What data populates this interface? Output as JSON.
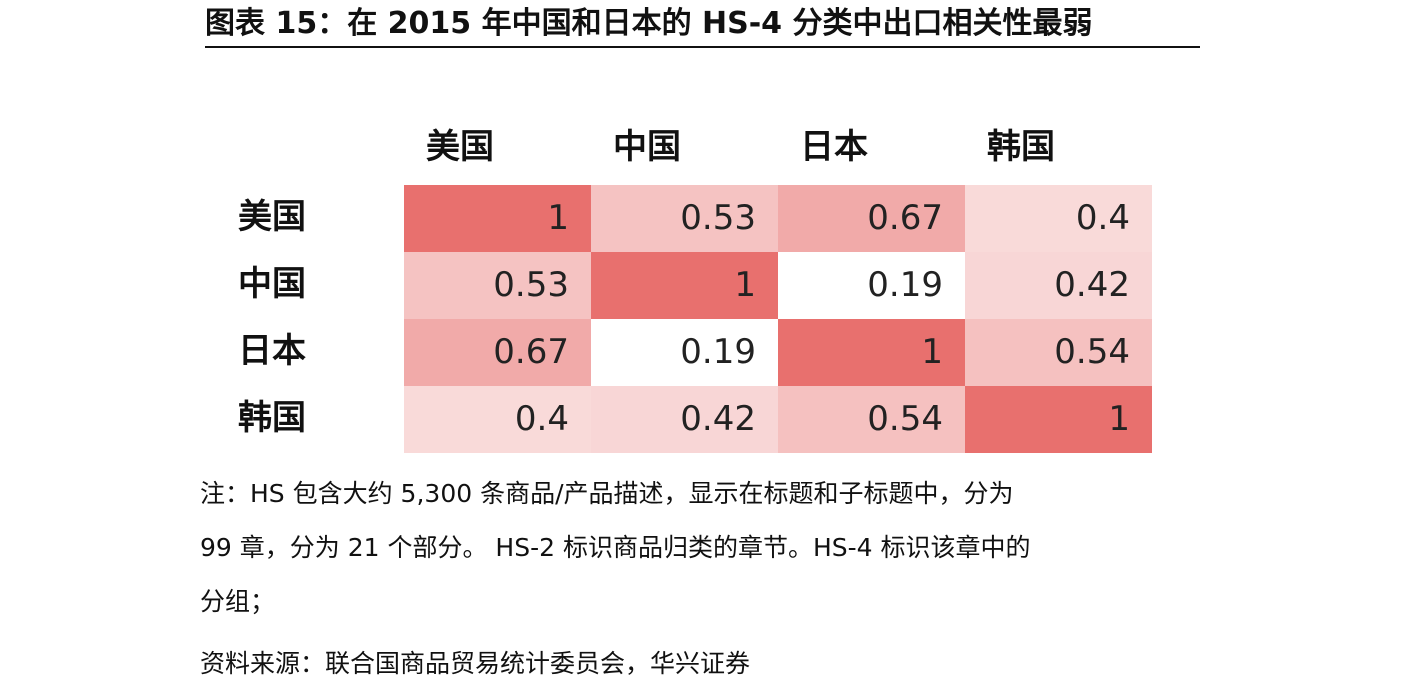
{
  "title": "图表 15：在 2015 年中国和日本的 HS-4 分类中出口相关性最弱",
  "chart_data": {
    "type": "heatmap",
    "title": "图表 15：在 2015 年中国和日本的 HS-4 分类中出口相关性最弱",
    "columns": [
      "美国",
      "中国",
      "日本",
      "韩国"
    ],
    "rows": [
      "美国",
      "中国",
      "日本",
      "韩国"
    ],
    "values": [
      [
        "1",
        "0.53",
        "0.67",
        "0.4"
      ],
      [
        "0.53",
        "1",
        "0.19",
        "0.42"
      ],
      [
        "0.67",
        "0.19",
        "1",
        "0.54"
      ],
      [
        "0.4",
        "0.42",
        "0.54",
        "1"
      ]
    ],
    "color_low": "#ffffff",
    "color_high": "#e8706e"
  },
  "notes": {
    "line1": "注：HS 包含大约 5,300 条商品/产品描述，显示在标题和子标题中，分为",
    "line2": "99 章，分为 21 个部分。 HS-2 标识商品归类的章节。HS-4 标识该章中的",
    "line3": "分组；",
    "source": "资料来源：联合国商品贸易统计委员会，华兴证券"
  }
}
